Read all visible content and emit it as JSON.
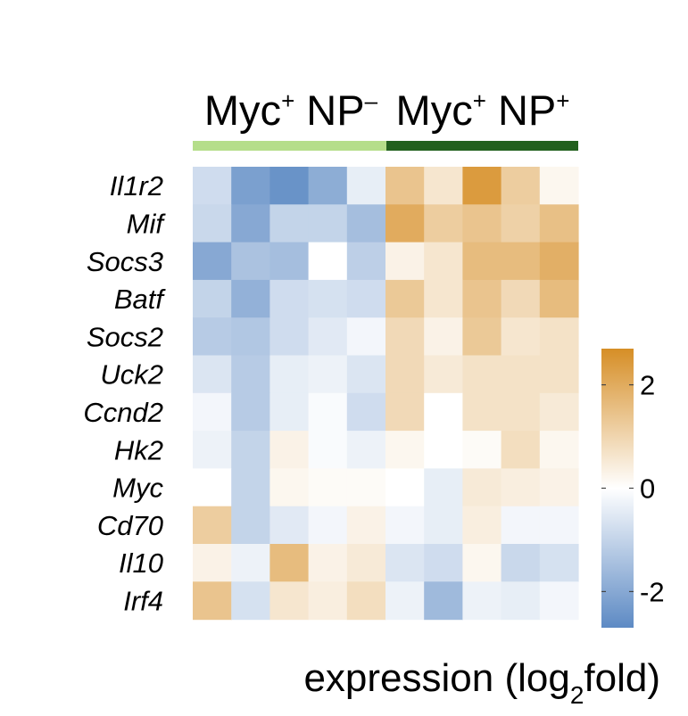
{
  "chart_data": {
    "type": "heatmap",
    "groups": [
      {
        "label_base": "Myc",
        "label_sup_1": "+",
        "label_mid": " NP",
        "label_sup_2": "–",
        "color": "#b5de8a",
        "columns": 5
      },
      {
        "label_base": "Myc",
        "label_sup_1": "+",
        "label_mid": " NP",
        "label_sup_2": "+",
        "color": "#22601e",
        "columns": 5
      }
    ],
    "rows": [
      "Il1r2",
      "Mif",
      "Socs3",
      "Batf",
      "Socs2",
      "Uck2",
      "Ccnd2",
      "Hk2",
      "Myc",
      "Cd70",
      "Il10",
      "Irf4"
    ],
    "values": [
      [
        -0.8,
        -2.2,
        -2.5,
        -1.9,
        -0.4,
        1.4,
        0.6,
        2.4,
        1.2,
        0.2
      ],
      [
        -0.9,
        -2.0,
        -1.0,
        -1.0,
        -1.5,
        2.0,
        1.2,
        1.4,
        1.1,
        1.5
      ],
      [
        -2.0,
        -1.4,
        -1.5,
        0.0,
        -1.1,
        0.3,
        0.6,
        1.6,
        1.6,
        1.9
      ],
      [
        -1.0,
        -1.8,
        -0.8,
        -0.7,
        -0.8,
        1.3,
        0.6,
        1.4,
        0.9,
        1.6
      ],
      [
        -1.2,
        -1.3,
        -0.8,
        -0.5,
        -0.2,
        0.9,
        0.3,
        1.3,
        0.6,
        0.7
      ],
      [
        -0.6,
        -1.2,
        -0.4,
        -0.3,
        -0.6,
        0.9,
        0.5,
        0.7,
        0.7,
        0.7
      ],
      [
        -0.2,
        -1.2,
        -0.4,
        -0.1,
        -0.8,
        0.9,
        0.0,
        0.7,
        0.7,
        0.5
      ],
      [
        -0.3,
        -1.0,
        0.3,
        -0.1,
        -0.3,
        0.2,
        0.0,
        0.1,
        0.8,
        0.2
      ],
      [
        0.0,
        -1.0,
        0.2,
        0.1,
        0.1,
        0.0,
        -0.4,
        0.5,
        0.4,
        0.3
      ],
      [
        1.2,
        -1.0,
        -0.5,
        -0.2,
        0.3,
        -0.2,
        -0.4,
        0.4,
        -0.2,
        -0.2
      ],
      [
        0.3,
        -0.3,
        1.6,
        0.3,
        0.5,
        -0.6,
        -0.8,
        0.2,
        -0.9,
        -0.7
      ],
      [
        1.4,
        -0.7,
        0.6,
        0.4,
        0.8,
        -0.3,
        -1.6,
        -0.3,
        -0.4,
        -0.2
      ]
    ],
    "colorbar": {
      "min": -2.7,
      "max": 2.7,
      "ticks": [
        {
          "value": 2,
          "label": "2"
        },
        {
          "value": 0,
          "label": "0"
        },
        {
          "value": -2,
          "label": "-2"
        }
      ],
      "colors": {
        "low": "#5d8ac4",
        "mid": "#ffffff",
        "high": "#d68e26"
      },
      "title_base": "expression (log",
      "title_sub": "2",
      "title_end": "fold)"
    }
  }
}
